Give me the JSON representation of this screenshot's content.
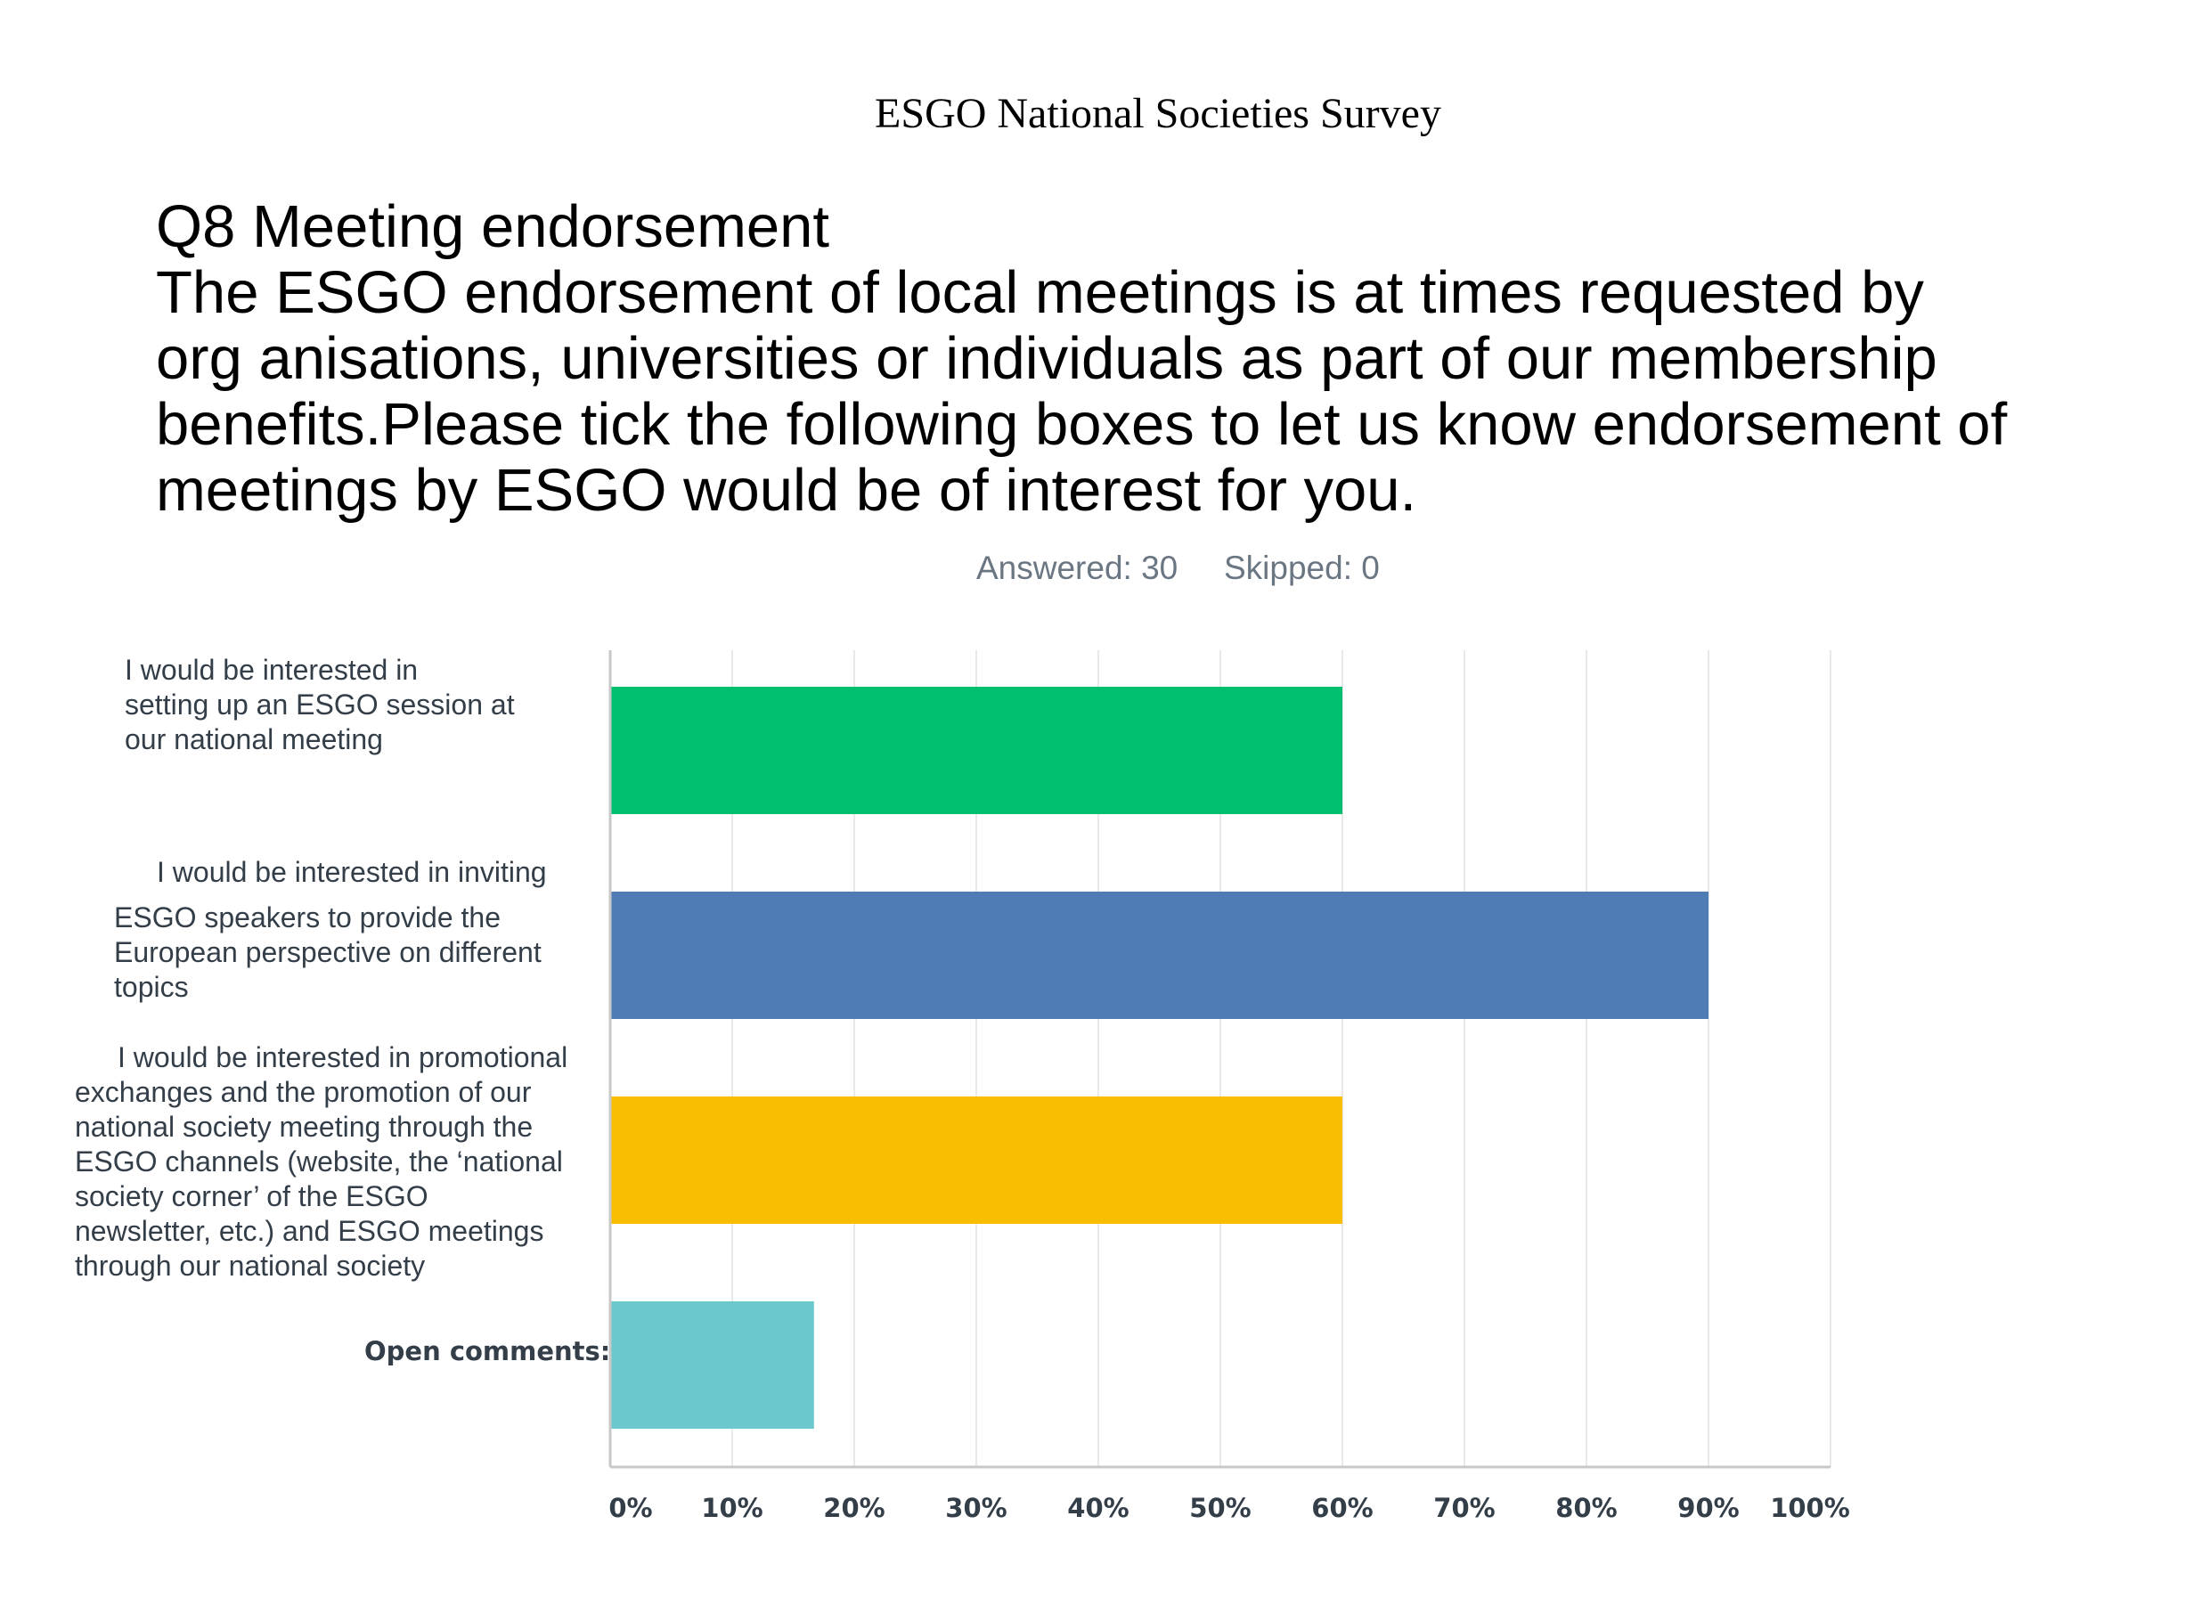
{
  "header": {
    "survey_title": "ESGO National Societies Survey"
  },
  "question": {
    "lines": [
      "Q8 Meeting endorsement",
      "The ESGO endorsement of local meetings is at times requested by",
      "org anisations, universities or individuals as part of our membership",
      "benefits.Please tick the following boxes to let us know endorsement of",
      "meetings by ESGO would be of interest for you."
    ]
  },
  "summary": {
    "answered": "Answered: 30",
    "skipped": "Skipped: 0"
  },
  "chart_data": {
    "type": "bar",
    "orientation": "horizontal",
    "categories": [
      "I would be interested in setting up an ESGO session at our national meeting",
      "I would be interested in inviting ESGO speakers to provide the European perspective on different topics",
      "I would be interested in promotional exchanges and the promotion of our national society meeting through the ESGO channels (website, the ‘national society corner’ of the ESGO newsletter, etc.) and ESGO meetings through our national society",
      "Open comments:"
    ],
    "category_lines": [
      [
        "I would be interested in",
        "setting up an ESGO session at",
        "our national meeting"
      ],
      [
        "I would be interested in inviting",
        "ESGO speakers to provide the",
        "European perspective on different",
        "topics"
      ],
      [
        "I would be interested in promotional",
        "exchanges and the promotion of our",
        "national society meeting through the",
        "ESGO channels (website, the ‘national",
        "society corner’ of the ESGO",
        "newsletter, etc.) and ESGO meetings",
        "through our national society"
      ],
      [
        "Open comments:"
      ]
    ],
    "values": [
      60,
      90,
      60,
      16.7
    ],
    "unit": "%",
    "colors": [
      "#00bf6f",
      "#507cb6",
      "#f9be00",
      "#6bc8cd"
    ],
    "xlim": [
      0,
      100
    ],
    "xticks": [
      "0%",
      "10%",
      "20%",
      "30%",
      "40%",
      "50%",
      "60%",
      "70%",
      "80%",
      "90%",
      "100%"
    ],
    "grid": true
  }
}
